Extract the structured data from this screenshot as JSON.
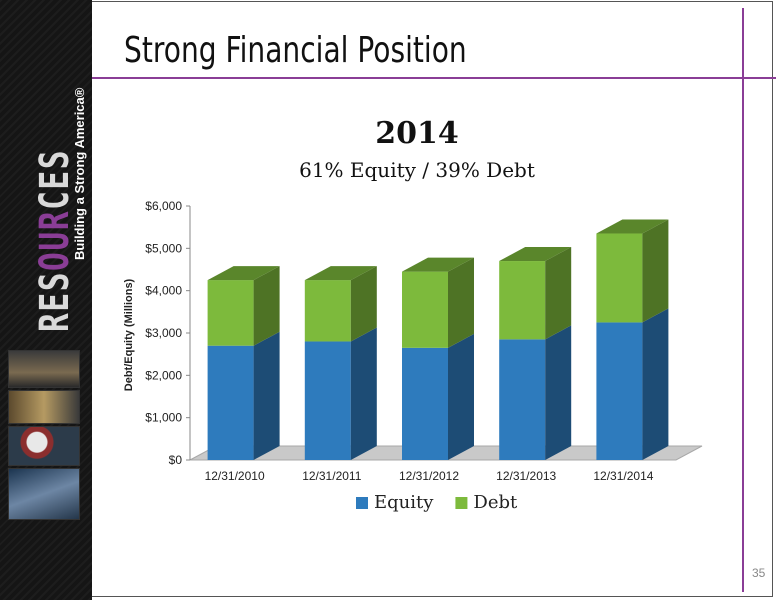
{
  "slide": {
    "title": "Strong Financial Position",
    "page_number": "35",
    "accent_color": "#8a3d96"
  },
  "brand": {
    "wordmark_pre": "RES",
    "wordmark_mid": "OUR",
    "wordmark_post": "CES",
    "tagline": "Building a Strong America®"
  },
  "chart_data": {
    "type": "bar",
    "stacked": true,
    "three_d": true,
    "title": "2014",
    "subtitle": "61% Equity / 39% Debt",
    "ylabel": "Debt/Equity (Millions)",
    "xlabel": "",
    "categories": [
      "12/31/2010",
      "12/31/2011",
      "12/31/2012",
      "12/31/2013",
      "12/31/2014"
    ],
    "series": [
      {
        "name": "Equity",
        "color": "#2e7bbd",
        "values": [
          2700,
          2800,
          2650,
          2850,
          3250
        ]
      },
      {
        "name": "Debt",
        "color": "#7dba3c",
        "values": [
          1550,
          1450,
          1800,
          1850,
          2100
        ]
      }
    ],
    "ylim": [
      0,
      6000
    ],
    "yticks": [
      "$0",
      "$1,000",
      "$2,000",
      "$3,000",
      "$4,000",
      "$5,000",
      "$6,000"
    ],
    "legend_position": "bottom",
    "grid": false
  }
}
